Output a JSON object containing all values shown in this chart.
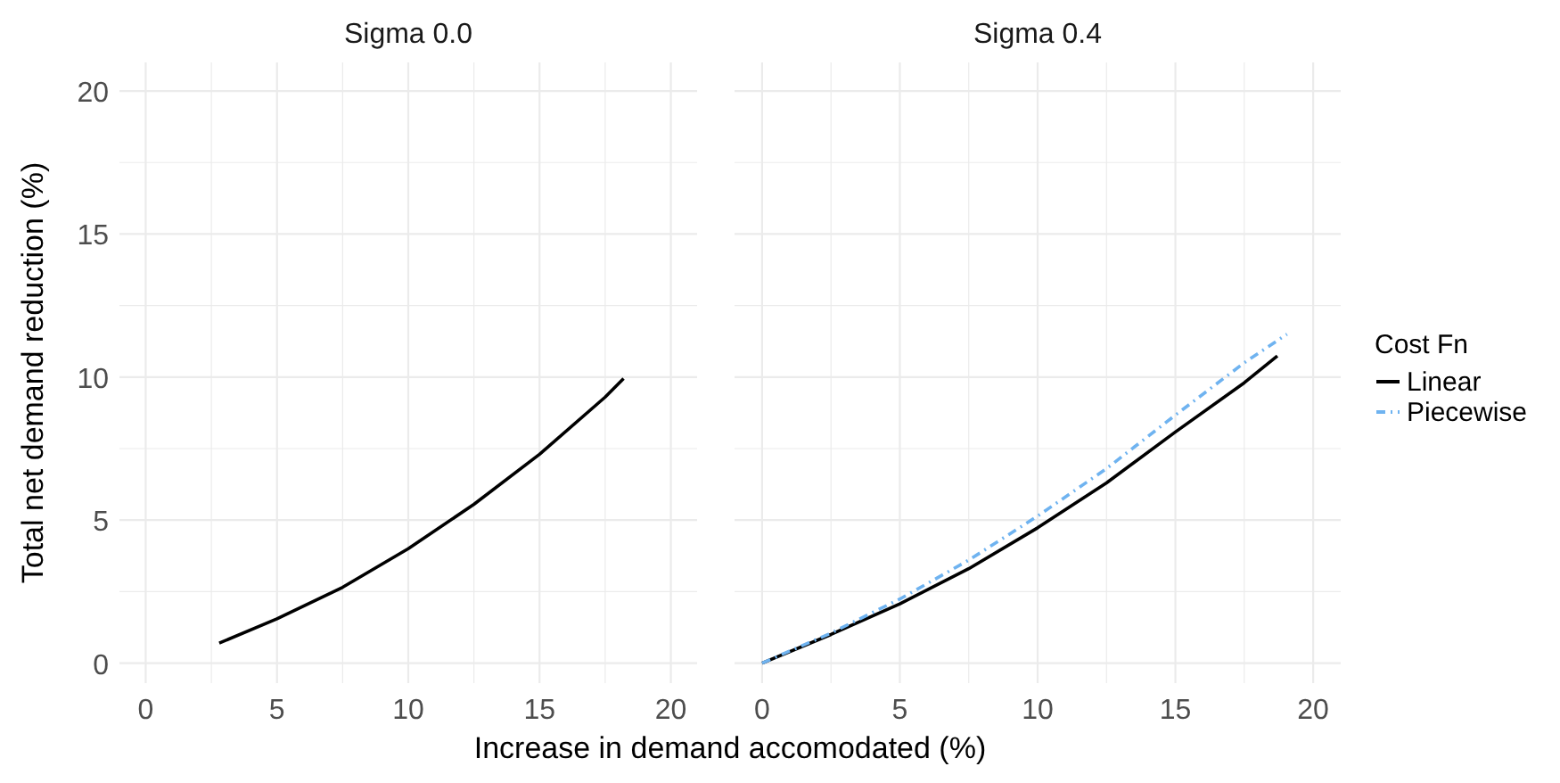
{
  "chart_data": [
    {
      "type": "line",
      "title": "Sigma 0.0",
      "xlabel": "Increase in demand accomodated (%)",
      "ylabel": "Total net demand reduction (%)",
      "xlim": [
        -1,
        21
      ],
      "ylim": [
        -0.7,
        21
      ],
      "xticks": [
        0,
        {
          "value": 2.5,
          "label": null
        },
        5,
        {
          "value": 7.5,
          "label": null
        },
        10,
        {
          "value": 12.5,
          "label": null
        },
        15,
        {
          "value": 17.5,
          "label": null
        },
        20
      ],
      "yticks": [
        0,
        {
          "value": 2.5,
          "label": null
        },
        5,
        {
          "value": 7.5,
          "label": null
        },
        10,
        {
          "value": 12.5,
          "label": null
        },
        15,
        {
          "value": 17.5,
          "label": null
        },
        20
      ],
      "grid": true,
      "line_style": "solid",
      "series": [
        {
          "color": "#000000",
          "x": [
            2.8,
            5,
            7.5,
            10,
            12.5,
            15,
            17.5,
            18.2
          ],
          "values": [
            0.7,
            1.55,
            2.65,
            4.0,
            5.55,
            7.3,
            9.3,
            9.95
          ]
        }
      ]
    },
    {
      "type": "line",
      "title": "Sigma 0.4",
      "xlim": [
        -1,
        21
      ],
      "ylim": [
        -0.7,
        21
      ],
      "xticks": [
        0,
        {
          "value": 2.5,
          "label": null
        },
        5,
        {
          "value": 7.5,
          "label": null
        },
        10,
        {
          "value": 12.5,
          "label": null
        },
        15,
        {
          "value": 17.5,
          "label": null
        },
        20
      ],
      "yticks": [
        0,
        {
          "value": 2.5,
          "label": null
        },
        5,
        {
          "value": 7.5,
          "label": null
        },
        10,
        {
          "value": 12.5,
          "label": null
        },
        15,
        {
          "value": 17.5,
          "label": null
        },
        20
      ],
      "grid": true,
      "tick_labels": "x",
      "legend": "right",
      "legend_title": "Cost Fn",
      "series": [
        {
          "name": "Linear",
          "color": "#000000",
          "line_style": "solid",
          "x": [
            0,
            2.5,
            5,
            7.5,
            10,
            12.5,
            15,
            17.5,
            18.7
          ],
          "values": [
            0,
            1.0,
            2.07,
            3.3,
            4.73,
            6.3,
            8.08,
            9.8,
            10.74
          ]
        },
        {
          "name": "Piecewise",
          "color": "#6fb3f0",
          "line_style": "dashed",
          "x": [
            0,
            2.5,
            5,
            7.5,
            10,
            12.5,
            15,
            17.5,
            19.05
          ],
          "values": [
            0,
            1.05,
            2.24,
            3.6,
            5.14,
            6.8,
            8.67,
            10.5,
            11.5
          ]
        }
      ]
    }
  ]
}
